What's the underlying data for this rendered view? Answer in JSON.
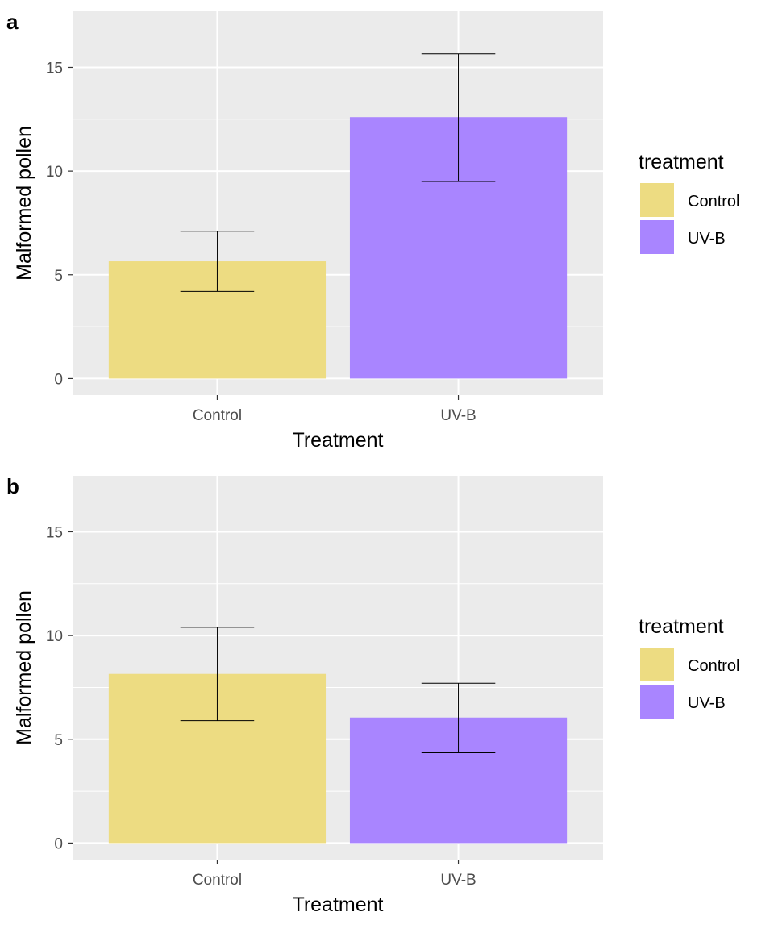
{
  "chart_data": [
    {
      "panel": "a",
      "type": "bar",
      "categories": [
        "Control",
        "UV-B"
      ],
      "values": [
        5.65,
        12.6
      ],
      "error_low": [
        4.2,
        9.5
      ],
      "error_high": [
        7.1,
        15.65
      ],
      "xlabel": "Treatment",
      "ylabel": "Malformed pollen",
      "ylim": [
        -0.8,
        17.7
      ],
      "yticks": [
        0,
        5,
        10,
        15
      ],
      "grid": true,
      "legend": {
        "title": "treatment",
        "entries": [
          "Control",
          "UV-B"
        ],
        "placement": "right"
      }
    },
    {
      "panel": "b",
      "type": "bar",
      "categories": [
        "Control",
        "UV-B"
      ],
      "values": [
        8.15,
        6.05
      ],
      "error_low": [
        5.9,
        4.35
      ],
      "error_high": [
        10.4,
        7.7
      ],
      "xlabel": "Treatment",
      "ylabel": "Malformed pollen",
      "ylim": [
        -0.8,
        17.7
      ],
      "yticks": [
        0,
        5,
        10,
        15
      ],
      "grid": true,
      "legend": {
        "title": "treatment",
        "entries": [
          "Control",
          "UV-B"
        ],
        "placement": "right"
      }
    }
  ],
  "colors": {
    "Control": "#EDDC82",
    "UV-B": "#A985FF",
    "panel_background": "#EBEBEB",
    "gridline": "#FFFFFF"
  }
}
